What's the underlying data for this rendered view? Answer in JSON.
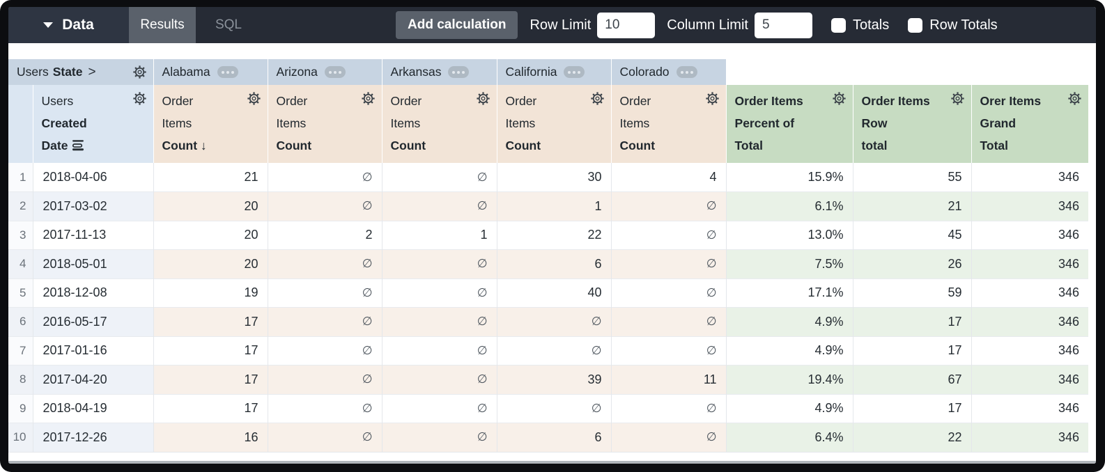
{
  "topbar": {
    "data_menu": {
      "label": "Data"
    },
    "tabs": [
      {
        "label": "Results",
        "active": true
      },
      {
        "label": "SQL",
        "active": false
      }
    ],
    "add_calculation_label": "Add calculation",
    "row_limit": {
      "label": "Row Limit",
      "value": "10"
    },
    "column_limit": {
      "label": "Column Limit",
      "value": "5"
    },
    "totals": {
      "label": "Totals",
      "checked": false
    },
    "row_totals": {
      "label": "Row Totals",
      "checked": false
    }
  },
  "table": {
    "pivot_header": {
      "prefix": "Users",
      "field": "State",
      "chevron": ">",
      "states": [
        "Alabama",
        "Arizona",
        "Arkansas",
        "California",
        "Colorado"
      ]
    },
    "row_dimension_header": {
      "prefix": "Users",
      "field_lines": [
        "Created",
        "Date"
      ]
    },
    "measure_header": {
      "prefix_lines": [
        "Order",
        "Items"
      ],
      "field": "Count",
      "sort_arrow": "↓",
      "sorted_column_index": 0
    },
    "calc_headers": [
      [
        "Order Items",
        "Percent of",
        "Total"
      ],
      [
        "Order Items",
        "Row",
        "total"
      ],
      [
        "Orer Items",
        "Grand",
        "Total"
      ]
    ],
    "null_symbol": "∅",
    "rows": [
      {
        "index": "1",
        "date": "2018-04-06",
        "measures": [
          "21",
          "∅",
          "∅",
          "30",
          "4"
        ],
        "calcs": [
          "15.9%",
          "55",
          "346"
        ]
      },
      {
        "index": "2",
        "date": "2017-03-02",
        "measures": [
          "20",
          "∅",
          "∅",
          "1",
          "∅"
        ],
        "calcs": [
          "6.1%",
          "21",
          "346"
        ]
      },
      {
        "index": "3",
        "date": "2017-11-13",
        "measures": [
          "20",
          "2",
          "1",
          "22",
          "∅"
        ],
        "calcs": [
          "13.0%",
          "45",
          "346"
        ]
      },
      {
        "index": "4",
        "date": "2018-05-01",
        "measures": [
          "20",
          "∅",
          "∅",
          "6",
          "∅"
        ],
        "calcs": [
          "7.5%",
          "26",
          "346"
        ]
      },
      {
        "index": "5",
        "date": "2018-12-08",
        "measures": [
          "19",
          "∅",
          "∅",
          "40",
          "∅"
        ],
        "calcs": [
          "17.1%",
          "59",
          "346"
        ]
      },
      {
        "index": "6",
        "date": "2016-05-17",
        "measures": [
          "17",
          "∅",
          "∅",
          "∅",
          "∅"
        ],
        "calcs": [
          "4.9%",
          "17",
          "346"
        ]
      },
      {
        "index": "7",
        "date": "2017-01-16",
        "measures": [
          "17",
          "∅",
          "∅",
          "∅",
          "∅"
        ],
        "calcs": [
          "4.9%",
          "17",
          "346"
        ]
      },
      {
        "index": "8",
        "date": "2017-04-20",
        "measures": [
          "17",
          "∅",
          "∅",
          "39",
          "11"
        ],
        "calcs": [
          "19.4%",
          "67",
          "346"
        ]
      },
      {
        "index": "9",
        "date": "2018-04-19",
        "measures": [
          "17",
          "∅",
          "∅",
          "∅",
          "∅"
        ],
        "calcs": [
          "4.9%",
          "17",
          "346"
        ]
      },
      {
        "index": "10",
        "date": "2017-12-26",
        "measures": [
          "16",
          "∅",
          "∅",
          "6",
          "∅"
        ],
        "calcs": [
          "6.4%",
          "22",
          "346"
        ]
      }
    ]
  },
  "colors": {
    "topbar_bg": "#262b35",
    "data_block_bg": "#2e3542",
    "active_tab_bg": "#5a616b",
    "inactive_tab_text": "#8b929b",
    "button_bg": "#5a616b",
    "pivot_header_bg": "#c7d4e2",
    "dimension_header_bg": "#dbe6f2",
    "measure_header_bg": "#f2e4d7",
    "calc_header_bg": "#c7dcc2",
    "dimension_zebra": "#eef2f8",
    "measure_zebra": "#f8f0e9",
    "calc_zebra": "#e9f2e7",
    "text": "#262d33"
  }
}
